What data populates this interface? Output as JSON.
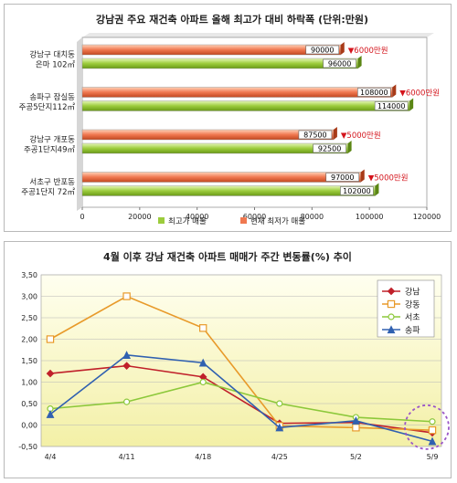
{
  "chart_data": [
    {
      "type": "bar",
      "orientation": "horizontal",
      "title": "강남권 주요 재건축 아파트 올해 최고가 대비 하락폭 (단위:만원)",
      "categories": [
        [
          "강남구 대치동",
          "은마 102㎡"
        ],
        [
          "송파구 잠실동",
          "주공5단지112㎡"
        ],
        [
          "강남구 개포동",
          "주공1단지49㎡"
        ],
        [
          "서초구 반포동",
          "주공1단지 72㎡"
        ]
      ],
      "series": [
        {
          "name": "최고가 매물",
          "values": [
            96000,
            114000,
            92500,
            102000
          ],
          "color": "#9ccc3c"
        },
        {
          "name": "현재 최저가 매물",
          "values": [
            90000,
            108000,
            87500,
            97000
          ],
          "color": "#f07850"
        }
      ],
      "annotations": [
        "▼6000만원",
        "▼6000만원",
        "▼5000만원",
        "▼5000만원"
      ],
      "xticks": [
        "0",
        "20000",
        "40000",
        "60000",
        "80000",
        "100000",
        "120000"
      ],
      "xlim": [
        0,
        120000
      ],
      "legend_position": "bottom"
    },
    {
      "type": "line",
      "title": "4월 이후 강남 재건축 아파트 매매가 주간 변동률(%) 추이",
      "categories": [
        "4/4",
        "4/11",
        "4/18",
        "4/25",
        "5/2",
        "5/9"
      ],
      "series": [
        {
          "name": "강남",
          "values": [
            1.2,
            1.38,
            1.12,
            0.04,
            0.06,
            -0.18
          ],
          "color": "#c0202a",
          "marker": "diamond"
        },
        {
          "name": "강동",
          "values": [
            2.0,
            3.0,
            2.26,
            -0.02,
            -0.06,
            -0.12
          ],
          "color": "#e89a2a",
          "marker": "square"
        },
        {
          "name": "서초",
          "values": [
            0.38,
            0.54,
            1.0,
            0.5,
            0.18,
            0.08
          ],
          "color": "#8cc83a",
          "marker": "circle"
        },
        {
          "name": "송파",
          "values": [
            0.25,
            1.63,
            1.45,
            -0.06,
            0.1,
            -0.38
          ],
          "color": "#3060b0",
          "marker": "triangle"
        }
      ],
      "yticks": [
        "3,50",
        "3,00",
        "2,50",
        "2,00",
        "1,50",
        "1,00",
        "0,50",
        "0,00",
        "-0,50"
      ],
      "ylim": [
        -0.5,
        3.5
      ],
      "grid": true,
      "legend_position": "top-right"
    }
  ]
}
